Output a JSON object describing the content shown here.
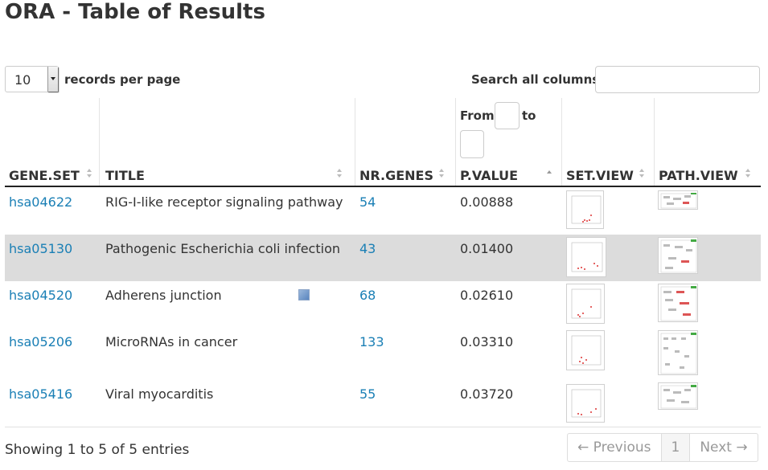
{
  "page": {
    "title": "ORA - Table of Results"
  },
  "controls": {
    "length_value": "10",
    "length_label": "records per page",
    "search_label": "Search all columns:",
    "search_value": "",
    "filter_from": "From",
    "filter_to": "to"
  },
  "columns": [
    "GENE.SET",
    "TITLE",
    "NR.GENES",
    "P.VALUE",
    "SET.VIEW",
    "PATH.VIEW"
  ],
  "rows": [
    {
      "gene_set": "hsa04622",
      "title": "RIG-I-like receptor signaling pathway",
      "nr_genes": "54",
      "p_value": "0.00888"
    },
    {
      "gene_set": "hsa05130",
      "title": "Pathogenic Escherichia coli infection",
      "nr_genes": "43",
      "p_value": "0.01400"
    },
    {
      "gene_set": "hsa04520",
      "title": "Adherens junction",
      "nr_genes": "68",
      "p_value": "0.02610"
    },
    {
      "gene_set": "hsa05206",
      "title": "MicroRNAs in cancer",
      "nr_genes": "133",
      "p_value": "0.03310"
    },
    {
      "gene_set": "hsa05416",
      "title": "Viral myocarditis",
      "nr_genes": "55",
      "p_value": "0.03720"
    }
  ],
  "footer": {
    "info": "Showing 1 to 5 of 5 entries",
    "prev": "← Previous",
    "page": "1",
    "next": "Next →"
  },
  "colors": {
    "link": "#1a7fb5",
    "shaded_row": "#dcdcdc",
    "text": "#333333"
  }
}
